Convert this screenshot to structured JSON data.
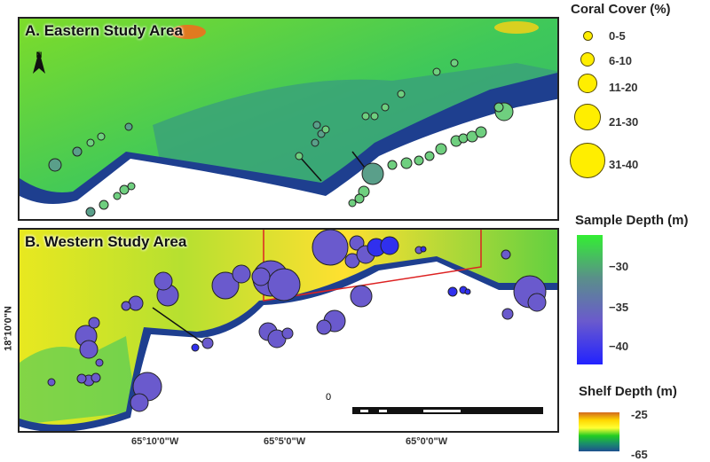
{
  "panels": {
    "a_title": "A. Eastern Study Area",
    "b_title": "B. Western Study Area",
    "north_label": "N"
  },
  "axes": {
    "x_ticks": [
      "65°10'0\"W",
      "65°5'0\"W",
      "65°0'0\"W"
    ],
    "y_ticks": [
      "18°10'0\"N"
    ]
  },
  "scale_bar": {
    "zero_label": "0"
  },
  "legend": {
    "coral_cover": {
      "title": "Coral Cover (%)",
      "classes": [
        "0-5",
        "6-10",
        "11-20",
        "21-30",
        "31-40"
      ],
      "symbol_color": "#ffee00"
    },
    "sample_depth": {
      "title": "Sample Depth (m)",
      "ticks": [
        "−30",
        "−35",
        "−40"
      ],
      "colors": [
        "#33ee33",
        "#5a8f8a",
        "#6a5acd",
        "#2222ff"
      ]
    },
    "shelf_depth": {
      "title": "Shelf Depth (m)",
      "max_label": "-25",
      "min_label": "-65",
      "colors": [
        "#d2691e",
        "#ffd700",
        "#ffff33",
        "#22cc22",
        "#1a8f6a",
        "#1e4f8f"
      ]
    }
  }
}
